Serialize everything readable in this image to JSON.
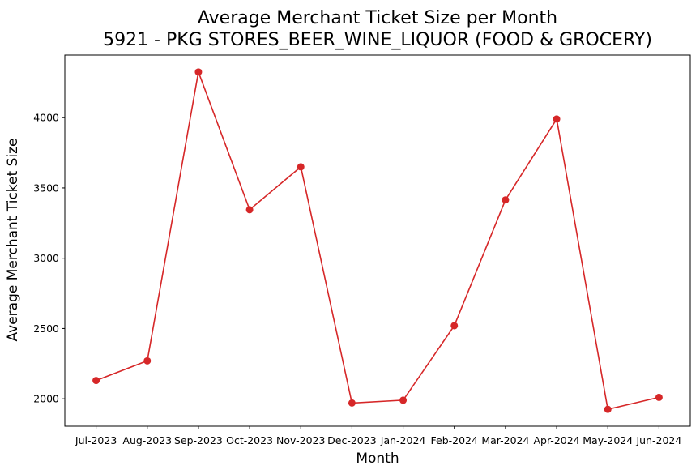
{
  "chart_data": {
    "type": "line",
    "title": "Average Merchant Ticket Size per Month",
    "subtitle": "5921 - PKG STORES_BEER_WINE_LIQUOR (FOOD & GROCERY)",
    "xlabel": "Month",
    "ylabel": "Average Merchant Ticket Size",
    "categories": [
      "Jul-2023",
      "Aug-2023",
      "Sep-2023",
      "Oct-2023",
      "Nov-2023",
      "Dec-2023",
      "Jan-2024",
      "Feb-2024",
      "Mar-2024",
      "Apr-2024",
      "May-2024",
      "Jun-2024"
    ],
    "series": [
      {
        "values": [
          2130,
          2270,
          4325,
          3345,
          3650,
          1970,
          1990,
          2520,
          3415,
          3990,
          1925,
          2010
        ],
        "color": "#d62728"
      }
    ],
    "yticks": [
      2000,
      2500,
      3000,
      3500,
      4000
    ],
    "ylim": [
      1805,
      4445
    ],
    "grid": false,
    "legend": "none"
  }
}
